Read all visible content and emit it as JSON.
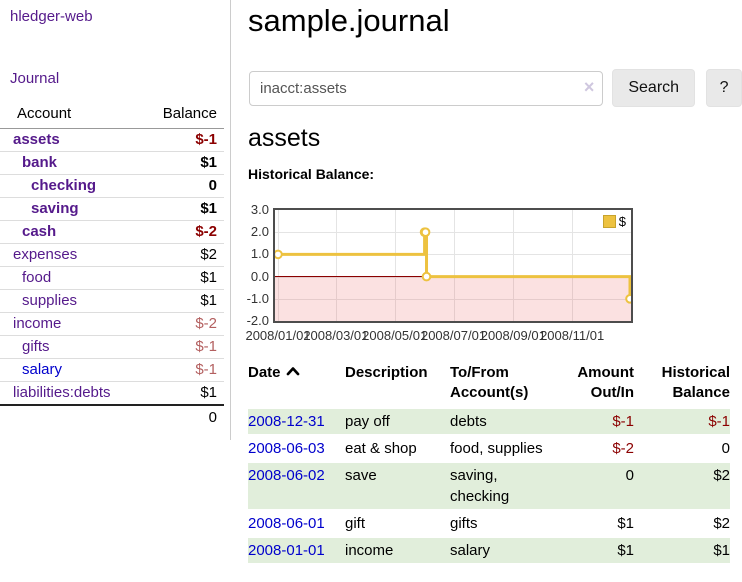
{
  "app": {
    "brand": "hledger-web"
  },
  "sidebar": {
    "journal_link": "Journal",
    "accounts_header": {
      "account": "Account",
      "balance": "Balance"
    },
    "accounts": [
      {
        "name": "assets",
        "level": 1,
        "current": true,
        "balance": "$-1",
        "neg": "strong"
      },
      {
        "name": "bank",
        "level": 2,
        "current": true,
        "balance": "$1",
        "neg": "none"
      },
      {
        "name": "checking",
        "level": 3,
        "current": true,
        "balance": "0",
        "neg": "none"
      },
      {
        "name": "saving",
        "level": 3,
        "current": true,
        "balance": "$1",
        "neg": "none"
      },
      {
        "name": "cash",
        "level": 2,
        "current": true,
        "balance": "$-2",
        "neg": "strong"
      },
      {
        "name": "expenses",
        "level": 1,
        "current": false,
        "balance": "$2",
        "neg": "none"
      },
      {
        "name": "food",
        "level": 2,
        "current": false,
        "balance": "$1",
        "neg": "none"
      },
      {
        "name": "supplies",
        "level": 2,
        "current": false,
        "balance": "$1",
        "neg": "none"
      },
      {
        "name": "income",
        "level": 1,
        "current": false,
        "balance": "$-2",
        "neg": "soft"
      },
      {
        "name": "gifts",
        "level": 2,
        "current": false,
        "balance": "$-1",
        "neg": "soft"
      },
      {
        "name": "salary",
        "level": 2,
        "current": false,
        "balance": "$-1",
        "neg": "soft",
        "unvisited": true
      },
      {
        "name": "liabilities:debts",
        "level": 1,
        "current": false,
        "balance": "$1",
        "neg": "none"
      }
    ],
    "total": "0"
  },
  "main": {
    "title": "sample.journal",
    "search": {
      "value": "inacct:assets",
      "clear_icon": "×",
      "button_label": "Search",
      "help_label": "?"
    },
    "account_heading": "assets",
    "chart_title": "Historical Balance:"
  },
  "chart_data": {
    "type": "line",
    "step": true,
    "title": "Historical Balance",
    "series": [
      {
        "name": "$",
        "color": "#edc240",
        "points": [
          [
            "2008-01-01",
            1
          ],
          [
            "2008-06-01",
            2
          ],
          [
            "2008-06-02",
            2
          ],
          [
            "2008-06-03",
            0
          ],
          [
            "2008-12-31",
            -1
          ]
        ]
      }
    ],
    "x_range": [
      "2008-01-01",
      "2008-12-31"
    ],
    "ylim": [
      -2,
      3
    ],
    "y_ticks": [
      "3.0",
      "2.0",
      "1.0",
      "0.0",
      "-1.0",
      "-2.0"
    ],
    "x_ticks": [
      "2008/01/01",
      "2008/03/01",
      "2008/05/01",
      "2008/07/01",
      "2008/09/01",
      "2008/11/01"
    ],
    "legend": {
      "label": "$",
      "position": "top-right"
    },
    "grid": true,
    "negative_region": true,
    "zero_line_color": "#8b0000"
  },
  "register": {
    "headers": {
      "date": "Date",
      "description": "Description",
      "accounts": "To/From Account(s)",
      "amount": "Amount Out/In",
      "balance": "Historical Balance"
    },
    "sort": {
      "column": "date",
      "direction": "ascending"
    },
    "rows": [
      {
        "date": "2008-12-31",
        "description": "pay off",
        "accounts": "debts",
        "amount": "$-1",
        "balance": "$-1",
        "amount_neg": true,
        "balance_neg": true,
        "shaded": true
      },
      {
        "date": "2008-06-03",
        "description": "eat & shop",
        "accounts": "food, supplies",
        "amount": "$-2",
        "balance": "0",
        "amount_neg": true,
        "balance_neg": false,
        "shaded": false
      },
      {
        "date": "2008-06-02",
        "description": "save",
        "accounts": "saving, checking",
        "amount": "0",
        "balance": "$2",
        "amount_neg": false,
        "balance_neg": false,
        "shaded": true
      },
      {
        "date": "2008-06-01",
        "description": "gift",
        "accounts": "gifts",
        "amount": "$1",
        "balance": "$2",
        "amount_neg": false,
        "balance_neg": false,
        "shaded": false
      },
      {
        "date": "2008-01-01",
        "description": "income",
        "accounts": "salary",
        "amount": "$1",
        "balance": "$1",
        "amount_neg": false,
        "balance_neg": false,
        "shaded": true
      }
    ]
  }
}
